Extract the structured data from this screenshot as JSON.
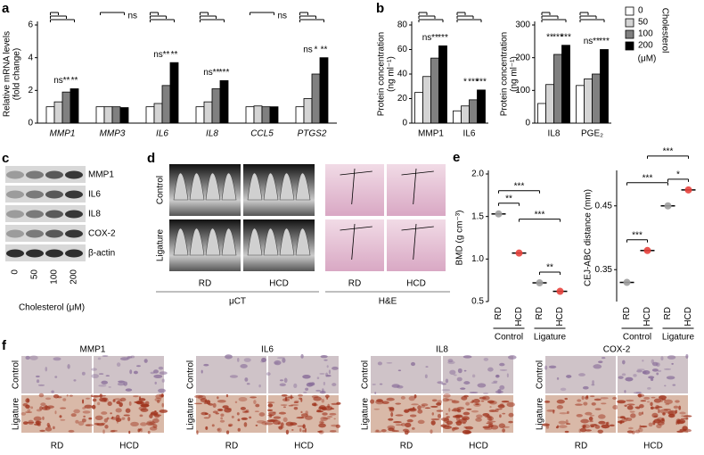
{
  "chart_data": [
    {
      "type": "bar",
      "panel": "a",
      "ylabel_lines": [
        "Relative mRNA levels",
        "(fold change)"
      ],
      "italic": true,
      "categories": [
        "MMP1",
        "MMP3",
        "IL6",
        "IL8",
        "CCL5",
        "PTGS2"
      ],
      "series": [
        {
          "name": "0",
          "color": "#ffffff",
          "values": [
            1,
            1,
            1,
            1,
            1,
            1
          ]
        },
        {
          "name": "50",
          "color": "#d4d4d4",
          "values": [
            1.3,
            1.0,
            1.2,
            1.3,
            1.05,
            1.5
          ],
          "significance": [
            "ns",
            null,
            "ns",
            "ns",
            null,
            "ns"
          ]
        },
        {
          "name": "100",
          "color": "#808080",
          "values": [
            1.9,
            1.0,
            2.3,
            2.1,
            1.0,
            3.0
          ],
          "significance": [
            "**",
            null,
            "**",
            "**",
            null,
            "*"
          ]
        },
        {
          "name": "200",
          "color": "#000000",
          "values": [
            2.1,
            0.95,
            3.7,
            2.6,
            1.0,
            4.0
          ],
          "significance": [
            "**",
            null,
            "**",
            "***",
            null,
            "**"
          ]
        }
      ],
      "bracket_labels": [
        null,
        "ns",
        null,
        null,
        "ns",
        null
      ],
      "ylim": [
        0,
        6
      ],
      "yticks": [
        0,
        2,
        4,
        6
      ]
    },
    {
      "type": "bar",
      "panel": "b",
      "ylabel_lines": [
        "Protein concentration",
        "(ng ml⁻¹)"
      ],
      "categories": [
        "MMP1",
        "IL6"
      ],
      "series": [
        {
          "name": "0",
          "color": "#ffffff",
          "values": [
            25,
            10
          ]
        },
        {
          "name": "50",
          "color": "#d4d4d4",
          "values": [
            38,
            14
          ],
          "significance": [
            "ns",
            "*"
          ]
        },
        {
          "name": "100",
          "color": "#808080",
          "values": [
            53,
            19
          ],
          "significance": [
            "**",
            "***"
          ]
        },
        {
          "name": "200",
          "color": "#000000",
          "values": [
            63,
            27
          ],
          "significance": [
            "***",
            "***"
          ]
        }
      ],
      "ylim": [
        0,
        80
      ],
      "yticks": [
        0,
        20,
        40,
        60,
        80
      ]
    },
    {
      "type": "bar",
      "ylabel_lines": [
        "Protein concentration",
        "(ng ml⁻¹)"
      ],
      "categories": [
        "IL8",
        "PGE₂"
      ],
      "series": [
        {
          "name": "0",
          "color": "#ffffff",
          "values": [
            60,
            115
          ]
        },
        {
          "name": "50",
          "color": "#d4d4d4",
          "values": [
            118,
            135
          ],
          "significance": [
            "**",
            "ns"
          ]
        },
        {
          "name": "100",
          "color": "#808080",
          "values": [
            210,
            150
          ],
          "significance": [
            "***",
            "**"
          ]
        },
        {
          "name": "200",
          "color": "#000000",
          "values": [
            238,
            225
          ],
          "significance": [
            "***",
            "***"
          ]
        }
      ],
      "ylim": [
        0,
        300
      ],
      "yticks": [
        0,
        100,
        200,
        300
      ],
      "legend": "right",
      "legend_title": "Cholesterol",
      "legend_unit": "(μM)"
    },
    {
      "type": "dot",
      "panel": "e",
      "ylabel": "BMD (g cm⁻³)",
      "categories": [
        "RD",
        "HCD",
        "RD",
        "HCD"
      ],
      "groups": [
        "Control",
        "Ligature"
      ],
      "values": [
        1.53,
        1.07,
        0.72,
        0.62
      ],
      "colors": [
        "#9e9e9e",
        "#e8413c",
        "#9e9e9e",
        "#e8413c"
      ],
      "significance": {
        "control": "**",
        "ligature": "**",
        "rd": "***",
        "hcd": "***"
      },
      "ylim": [
        0.5,
        2.0
      ],
      "yticks": [
        0.5,
        {
          "value": 1,
          "label": "1.0"
        },
        1.5,
        {
          "value": 2,
          "label": "2.0"
        }
      ]
    },
    {
      "type": "dot",
      "ylabel": "CEJ-ABC distance (mm)",
      "categories": [
        "RD",
        "HCD",
        "RD",
        "HCD"
      ],
      "groups": [
        "Control",
        "Ligature"
      ],
      "values": [
        0.33,
        0.38,
        0.45,
        0.475
      ],
      "colors": [
        "#9e9e9e",
        "#e8413c",
        "#9e9e9e",
        "#e8413c"
      ],
      "significance": {
        "control": "***",
        "ligature": "*",
        "rd": "***",
        "hcd": "***"
      },
      "ylim": [
        0.3,
        0.5
      ],
      "yticks": [
        0.35,
        0.45
      ]
    }
  ],
  "blot": {
    "panel": "c",
    "bands": [
      "MMP1",
      "IL6",
      "IL8",
      "COX-2",
      "β-actin"
    ],
    "lanes": [
      "0",
      "50",
      "100",
      "200"
    ],
    "xlabel": "Cholesterol (μM)"
  },
  "histology": {
    "panel": "d",
    "rows": [
      "Control",
      "Ligature"
    ],
    "columns": [
      "RD",
      "HCD"
    ],
    "groups": [
      "μCT",
      "H&E"
    ]
  },
  "ihc": {
    "panel": "f",
    "markers": [
      "MMP1",
      "IL6",
      "IL8",
      "COX-2"
    ],
    "rows": [
      "Control",
      "Ligature"
    ],
    "columns": [
      "RD",
      "HCD"
    ]
  }
}
